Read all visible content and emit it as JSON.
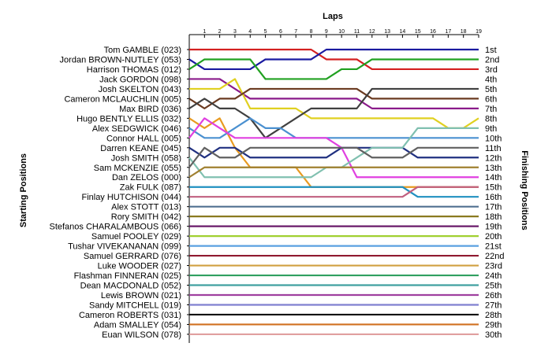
{
  "chart_data": {
    "type": "line",
    "title": "Laps",
    "ylabel_left": "Starting Positions",
    "ylabel_right": "Finishing Positions",
    "laps": [
      1,
      2,
      3,
      4,
      5,
      6,
      7,
      8,
      9,
      10,
      11,
      12,
      13,
      14,
      15,
      16,
      17,
      18,
      19
    ],
    "finishing_labels": [
      "1st",
      "2nd",
      "3rd",
      "4th",
      "5th",
      "6th",
      "7th",
      "8th",
      "9th",
      "10th",
      "11th",
      "12th",
      "13th",
      "14th",
      "15th",
      "16th",
      "17th",
      "18th",
      "19th",
      "20th",
      "21st",
      "22nd",
      "23rd",
      "24th",
      "25th",
      "26th",
      "27th",
      "28th",
      "29th",
      "30th"
    ],
    "drivers": [
      {
        "name": "Tom GAMBLE (023)",
        "color": "#d42020",
        "positions": [
          1,
          1,
          1,
          1,
          1,
          1,
          1,
          1,
          1,
          2,
          2,
          2,
          3,
          3,
          3,
          3,
          3,
          3,
          3,
          3
        ]
      },
      {
        "name": "Jordan BROWN-NUTLEY (053)",
        "color": "#1a1aa0",
        "positions": [
          2,
          3,
          3,
          3,
          3,
          2,
          2,
          2,
          2,
          1,
          1,
          1,
          1,
          1,
          1,
          1,
          1,
          1,
          1,
          1
        ]
      },
      {
        "name": "Harrison THOMAS (012)",
        "color": "#20a020",
        "positions": [
          3,
          2,
          2,
          2,
          2,
          4,
          4,
          4,
          4,
          4,
          3,
          3,
          2,
          2,
          2,
          2,
          2,
          2,
          2,
          2
        ]
      },
      {
        "name": "Jack GORDON (098)",
        "color": "#8a1a8a",
        "positions": [
          4,
          4,
          4,
          5,
          6,
          6,
          6,
          6,
          6,
          6,
          6,
          6,
          7,
          7,
          7,
          7,
          7,
          7,
          7,
          7
        ]
      },
      {
        "name": "Josh SKELTON (043)",
        "color": "#e0d020",
        "positions": [
          5,
          5,
          5,
          4,
          7,
          7,
          7,
          7,
          8,
          8,
          8,
          8,
          8,
          8,
          8,
          8,
          8,
          9,
          9,
          8
        ]
      },
      {
        "name": "Cameron MCLAUCHLIN (005)",
        "color": "#6a3a20",
        "positions": [
          6,
          7,
          6,
          6,
          5,
          5,
          5,
          5,
          5,
          5,
          5,
          5,
          6,
          6,
          6,
          6,
          6,
          6,
          6,
          6
        ]
      },
      {
        "name": "Max BIRD (036)",
        "color": "#404040",
        "positions": [
          7,
          6,
          7,
          7,
          8,
          10,
          9,
          8,
          7,
          7,
          7,
          7,
          5,
          5,
          5,
          5,
          5,
          5,
          5,
          5
        ]
      },
      {
        "name": "Hugo BENTLY ELLIS (032)",
        "color": "#e89a20",
        "positions": [
          8,
          9,
          8,
          11,
          13,
          13,
          13,
          13,
          15,
          15,
          15,
          15,
          15,
          15,
          15,
          15,
          15,
          15,
          15,
          15
        ]
      },
      {
        "name": "Alex SEDGWICK (046)",
        "color": "#4a90d0",
        "positions": [
          9,
          10,
          10,
          9,
          8,
          9,
          9,
          10,
          10,
          10,
          10,
          10,
          10,
          10,
          10,
          10,
          10,
          10,
          10,
          10
        ]
      },
      {
        "name": "Connor HALL (005)",
        "color": "#e040e0",
        "positions": [
          10,
          8,
          9,
          10,
          10,
          10,
          10,
          10,
          10,
          10,
          11,
          14,
          14,
          14,
          14,
          14,
          14,
          14,
          14,
          14
        ]
      },
      {
        "name": "Darren KEANE (045)",
        "color": "#203080",
        "positions": [
          11,
          12,
          11,
          11,
          12,
          12,
          12,
          12,
          12,
          12,
          11,
          11,
          11,
          11,
          11,
          12,
          12,
          12,
          12,
          12
        ]
      },
      {
        "name": "Josh SMITH (058)",
        "color": "#80c0b0",
        "positions": [
          12,
          14,
          14,
          14,
          14,
          14,
          14,
          14,
          14,
          13,
          13,
          12,
          11,
          11,
          11,
          9,
          9,
          9,
          9,
          9
        ]
      },
      {
        "name": "Sam MCKENZIE (055)",
        "color": "#606060",
        "positions": [
          13,
          11,
          12,
          12,
          11,
          11,
          11,
          11,
          11,
          11,
          11,
          11,
          12,
          12,
          12,
          11,
          11,
          11,
          11,
          11
        ]
      },
      {
        "name": "Dan ZELOS (000)",
        "color": "#a08030",
        "positions": [
          14,
          13,
          13,
          13,
          13,
          13,
          13,
          13,
          13,
          13,
          13,
          13,
          13,
          13,
          13,
          13,
          13,
          13,
          13,
          13
        ]
      },
      {
        "name": "Zak FULK (087)",
        "color": "#2090c0",
        "positions": [
          15,
          15,
          15,
          15,
          15,
          15,
          15,
          15,
          15,
          15,
          15,
          15,
          15,
          15,
          15,
          16,
          16,
          16,
          16,
          16
        ]
      },
      {
        "name": "Finlay HUTCHISON (044)",
        "color": "#c06080",
        "positions": [
          16,
          16,
          16,
          16,
          16,
          16,
          16,
          16,
          16,
          16,
          16,
          16,
          16,
          16,
          16,
          15,
          15,
          15,
          15,
          15
        ]
      },
      {
        "name": "Alex STOTT (013)",
        "color": "#507090",
        "positions": [
          17,
          17,
          17,
          17,
          17,
          17,
          17,
          17,
          17,
          17,
          17,
          17,
          17,
          17,
          17,
          17,
          17,
          17,
          17,
          17
        ]
      },
      {
        "name": "Rory SMITH (042)",
        "color": "#8a7a20",
        "positions": [
          18,
          18,
          18,
          18,
          18,
          18,
          18,
          18,
          18,
          18,
          18,
          18,
          18,
          18,
          18,
          18,
          18,
          18,
          18,
          18
        ]
      },
      {
        "name": "Stefanos CHARALAMBOUS (066)",
        "color": "#6a1a6a",
        "positions": [
          19,
          19,
          19,
          19,
          19,
          19,
          19,
          19,
          19,
          19,
          19,
          19,
          19,
          19,
          19,
          19,
          19,
          19,
          19,
          19
        ]
      },
      {
        "name": "Samuel POOLEY (029)",
        "color": "#a0d030",
        "positions": [
          20,
          20,
          20,
          20,
          20,
          20,
          20,
          20,
          20,
          20,
          20,
          20,
          20,
          20,
          20,
          20,
          20,
          20,
          20,
          20
        ]
      },
      {
        "name": "Tushar VIVEKANANAN (099)",
        "color": "#5aa0e0",
        "positions": [
          21,
          21,
          21,
          21,
          21,
          21,
          21,
          21,
          21,
          21,
          21,
          21,
          21,
          21,
          21,
          21,
          21,
          21,
          21,
          21
        ]
      },
      {
        "name": "Samuel GERRARD (076)",
        "color": "#901a30",
        "positions": [
          22,
          22,
          22,
          22,
          22,
          22,
          22,
          22,
          22,
          22,
          22,
          22,
          22,
          22,
          22,
          22,
          22,
          22,
          22,
          22
        ]
      },
      {
        "name": "Luke WOODER (027)",
        "color": "#d0a040",
        "positions": [
          23,
          23,
          23,
          23,
          23,
          23,
          23,
          23,
          23,
          23,
          23,
          23,
          23,
          23,
          23,
          23,
          23,
          23,
          23,
          23
        ]
      },
      {
        "name": "Flashman FINNERAN (025)",
        "color": "#30a060",
        "positions": [
          24,
          24,
          24,
          24,
          24,
          24,
          24,
          24,
          24,
          24,
          24,
          24,
          24,
          24,
          24,
          24,
          24,
          24,
          24,
          24
        ]
      },
      {
        "name": "Dean MACDONALD (052)",
        "color": "#40a0a0",
        "positions": [
          25,
          25,
          25,
          25,
          25,
          25,
          25,
          25,
          25,
          25,
          25,
          25,
          25,
          25,
          25,
          25,
          25,
          25,
          25,
          25
        ]
      },
      {
        "name": "Lewis BROWN (021)",
        "color": "#a040a0",
        "positions": [
          26,
          26,
          26,
          26,
          26,
          26,
          26,
          26,
          26,
          26,
          26,
          26,
          26,
          26,
          26,
          26,
          26,
          26,
          26,
          26
        ]
      },
      {
        "name": "Sandy MITCHELL (019)",
        "color": "#8080d0",
        "positions": [
          27,
          27,
          27,
          27,
          27,
          27,
          27,
          27,
          27,
          27,
          27,
          27,
          27,
          27,
          27,
          27,
          27,
          27,
          27,
          27
        ]
      },
      {
        "name": "Cameron ROBERTS (031)",
        "color": "#101010",
        "positions": [
          28,
          28,
          28,
          28,
          28,
          28,
          28,
          28,
          28,
          28,
          28,
          28,
          28,
          28,
          28,
          28,
          28,
          28,
          28,
          28
        ]
      },
      {
        "name": "Adam SMALLEY (054)",
        "color": "#d07020",
        "positions": [
          29,
          29,
          29,
          29,
          29,
          29,
          29,
          29,
          29,
          29,
          29,
          29,
          29,
          29,
          29,
          29,
          29,
          29,
          29,
          29
        ]
      },
      {
        "name": "Euan WILSON (078)",
        "color": "#e0a0a0",
        "positions": [
          30,
          30,
          30,
          30,
          30,
          30,
          30,
          30,
          30,
          30,
          30,
          30,
          30,
          30,
          30,
          30,
          30,
          30,
          30,
          30
        ]
      }
    ]
  }
}
